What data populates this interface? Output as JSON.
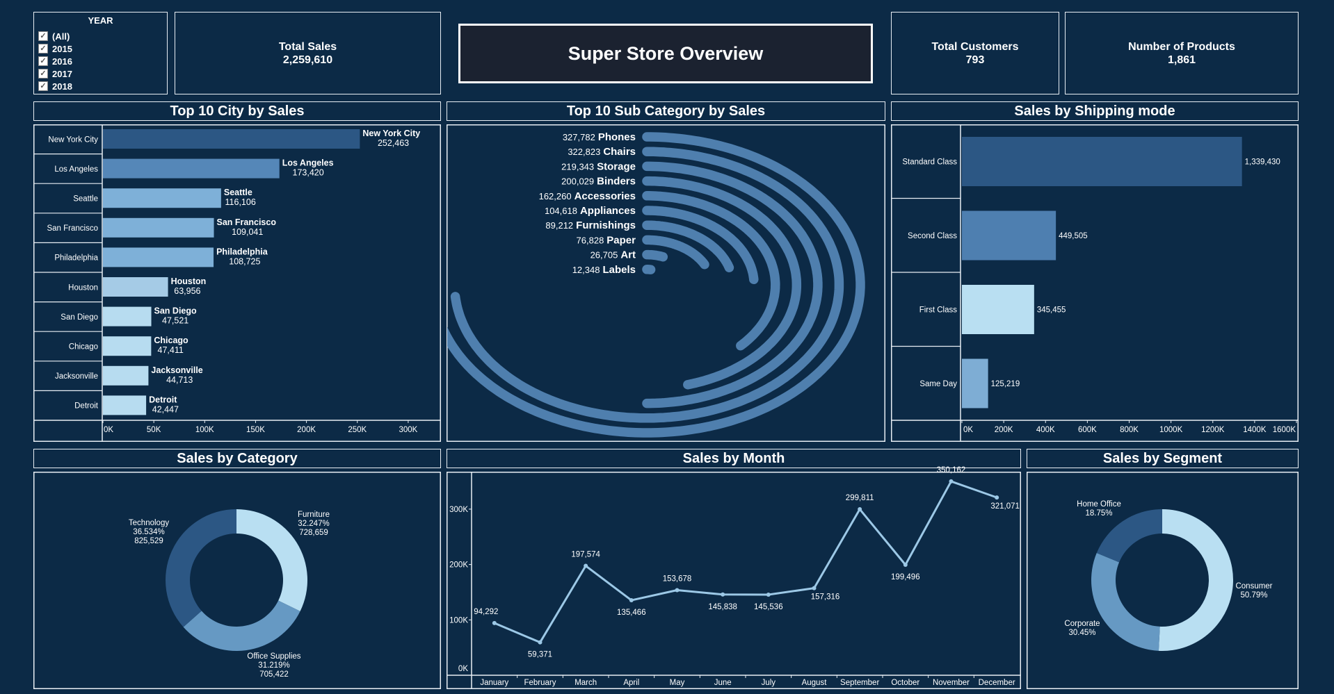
{
  "filter": {
    "title": "YEAR",
    "options": [
      {
        "label": "(All)",
        "checked": true
      },
      {
        "label": "2015",
        "checked": true
      },
      {
        "label": "2016",
        "checked": true
      },
      {
        "label": "2017",
        "checked": true
      },
      {
        "label": "2018",
        "checked": true
      }
    ]
  },
  "kpis": {
    "total_sales": {
      "label": "Total Sales",
      "value": "2,259,610"
    },
    "total_customers": {
      "label": "Total Customers",
      "value": "793"
    },
    "number_of_products": {
      "label": "Number of Products",
      "value": "1,861"
    }
  },
  "title": "Super Store Overview",
  "panels": {
    "city": "Top 10 City by Sales",
    "subcategory": "Top 10 Sub Category by Sales",
    "shipping": "Sales by Shipping mode",
    "category": "Sales by Category",
    "month": "Sales by Month",
    "segment": "Sales by Segment"
  },
  "colors": {
    "background": "#0c2a46",
    "dark": "#2c5784",
    "mid": "#4e7fb0",
    "mid_light": "#6699c3",
    "light": "#7eadd4",
    "lighter": "#a5cbe6",
    "lightest": "#b9dff2",
    "radial": "#4f7fae",
    "line": "#9cc8e6"
  },
  "chart_data": [
    {
      "id": "city",
      "type": "bar",
      "orientation": "horizontal",
      "categories": [
        "New York City",
        "Los Angeles",
        "Seattle",
        "San Francisco",
        "Philadelphia",
        "Houston",
        "San Diego",
        "Chicago",
        "Jacksonville",
        "Detroit"
      ],
      "values": [
        252463,
        173420,
        116106,
        109041,
        108725,
        63956,
        47521,
        47411,
        44713,
        42447
      ],
      "value_labels": [
        "252,463",
        "173,420",
        "116,106",
        "109,041",
        "108,725",
        "63,956",
        "47,521",
        "47,411",
        "44,713",
        "42,447"
      ],
      "bar_colors": [
        "#2c5784",
        "#5587b8",
        "#7eb0d8",
        "#7eb0d8",
        "#7eb0d8",
        "#a5cbe6",
        "#b7dcf0",
        "#b7dcf0",
        "#b7dcf0",
        "#b7dcf0"
      ],
      "x_ticks": [
        "0K",
        "50K",
        "100K",
        "150K",
        "200K",
        "250K",
        "300K"
      ],
      "x_tick_values": [
        0,
        50000,
        100000,
        150000,
        200000,
        250000,
        300000
      ],
      "xlim": [
        0,
        330000
      ]
    },
    {
      "id": "subcategory",
      "type": "radial-bar",
      "categories": [
        "Phones",
        "Chairs",
        "Storage",
        "Binders",
        "Accessories",
        "Appliances",
        "Furnishings",
        "Paper",
        "Art",
        "Labels"
      ],
      "values": [
        327782,
        322823,
        219343,
        200029,
        162260,
        104618,
        89212,
        76828,
        26705,
        12348
      ],
      "value_labels": [
        "327,782",
        "322,823",
        "219,343",
        "200,029",
        "162,260",
        "104,618",
        "89,212",
        "76,828",
        "26,705",
        "12,348"
      ]
    },
    {
      "id": "shipping",
      "type": "bar",
      "orientation": "horizontal",
      "categories": [
        "Standard Class",
        "Second Class",
        "First Class",
        "Same Day"
      ],
      "values": [
        1339430,
        449505,
        345455,
        125219
      ],
      "value_labels": [
        "1,339,430",
        "449,505",
        "345,455",
        "125,219"
      ],
      "bar_colors": [
        "#2c5784",
        "#4e7fb0",
        "#b9dff2",
        "#7eadd4"
      ],
      "x_ticks": [
        "0K",
        "200K",
        "400K",
        "600K",
        "800K",
        "1000K",
        "1200K",
        "1400K",
        "1600K"
      ],
      "x_tick_values": [
        0,
        200000,
        400000,
        600000,
        800000,
        1000000,
        1200000,
        1400000,
        1600000
      ],
      "xlim": [
        0,
        1600000
      ]
    },
    {
      "id": "category",
      "type": "pie",
      "donut": true,
      "categories": [
        "Furniture",
        "Office Supplies",
        "Technology"
      ],
      "percent": [
        32.247,
        31.219,
        36.534
      ],
      "percent_labels": [
        "32.247%",
        "31.219%",
        "36.534%"
      ],
      "values": [
        728659,
        705422,
        825529
      ],
      "value_labels": [
        "728,659",
        "705,422",
        "825,529"
      ],
      "slice_colors": [
        "#b9dff2",
        "#6699c3",
        "#2c5784"
      ]
    },
    {
      "id": "month",
      "type": "line",
      "categories": [
        "January",
        "February",
        "March",
        "April",
        "May",
        "June",
        "July",
        "August",
        "September",
        "October",
        "November",
        "December"
      ],
      "values": [
        94292,
        59371,
        197574,
        135466,
        153678,
        145838,
        145536,
        157316,
        299811,
        199496,
        350162,
        321071
      ],
      "value_labels": [
        "94,292",
        "59,371",
        "197,574",
        "135,466",
        "153,678",
        "145,838",
        "145,536",
        "157,316",
        "299,811",
        "199,496",
        "350,162",
        "321,071"
      ],
      "y_ticks": [
        "0K",
        "100K",
        "200K",
        "300K"
      ],
      "y_tick_values": [
        0,
        100000,
        200000,
        300000
      ],
      "ylim": [
        0,
        366000
      ]
    },
    {
      "id": "segment",
      "type": "pie",
      "donut": true,
      "categories": [
        "Consumer",
        "Corporate",
        "Home Office"
      ],
      "percent": [
        50.79,
        30.45,
        18.75
      ],
      "percent_labels": [
        "50.79%",
        "30.45%",
        "18.75%"
      ],
      "slice_colors": [
        "#b9dff2",
        "#6699c3",
        "#2c5784"
      ]
    }
  ]
}
